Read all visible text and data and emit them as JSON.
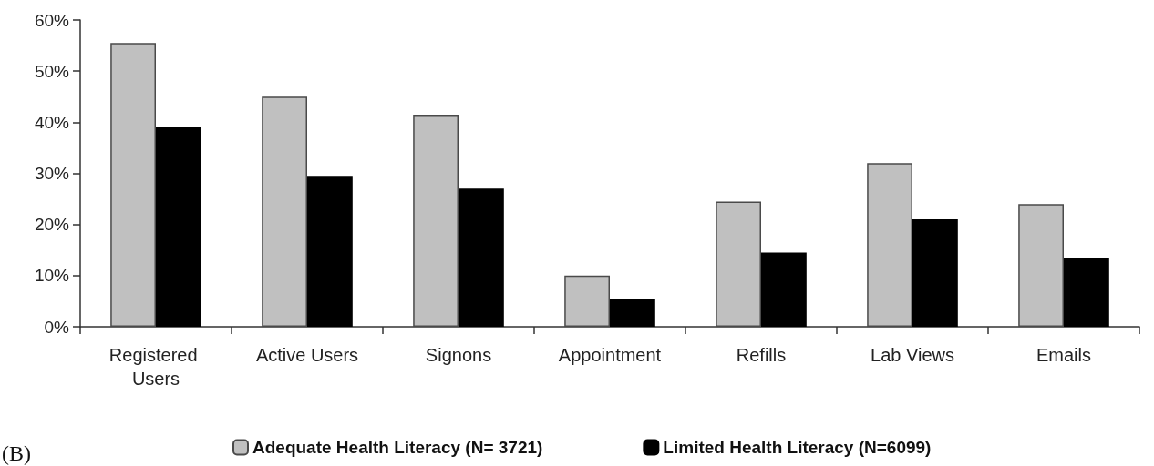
{
  "chart_data": {
    "type": "bar",
    "categories": [
      "Registered Users",
      "Active Users",
      "Signons",
      "Appointment",
      "Refills",
      "Lab Views",
      "Emails"
    ],
    "series": [
      {
        "name": "Adequate Health Literacy (N= 3721)",
        "color": "#c0c0c0",
        "values": [
          55.5,
          45,
          41.5,
          10,
          24.5,
          32,
          24
        ]
      },
      {
        "name": "Limited Health Literacy (N=6099)",
        "color": "#000000",
        "values": [
          39,
          29.5,
          27,
          5.5,
          14.5,
          21,
          13.5
        ]
      }
    ],
    "ylim": [
      0,
      60
    ],
    "yticks": [
      {
        "value": 0,
        "label": "0%"
      },
      {
        "value": 10,
        "label": "10%"
      },
      {
        "value": 20,
        "label": "20%"
      },
      {
        "value": 30,
        "label": "30%"
      },
      {
        "value": 40,
        "label": "40%"
      },
      {
        "value": 50,
        "label": "50%"
      },
      {
        "value": 60,
        "label": "60%"
      }
    ],
    "grid": false,
    "legend": "bottom",
    "annotations": [
      "(B)"
    ]
  }
}
